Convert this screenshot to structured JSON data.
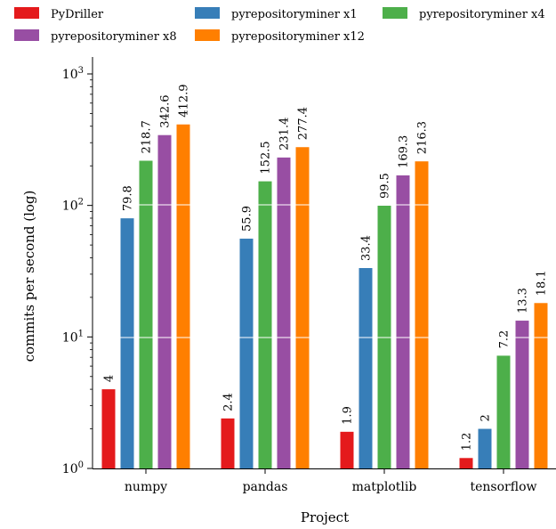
{
  "chart_data": {
    "type": "bar",
    "title": "",
    "xlabel": "Project",
    "ylabel": "commits per second (log)",
    "yscale": "log",
    "ylim": [
      1,
      1000
    ],
    "yticks": [
      {
        "value": 1,
        "base": "10",
        "exp": "0"
      },
      {
        "value": 10,
        "base": "10",
        "exp": "1"
      },
      {
        "value": 100,
        "base": "10",
        "exp": "2"
      },
      {
        "value": 1000,
        "base": "10",
        "exp": "3"
      }
    ],
    "grid": "horizontal, white",
    "legend": "top",
    "categories": [
      "numpy",
      "pandas",
      "matplotlib",
      "tensorflow"
    ],
    "series": [
      {
        "name": "PyDriller",
        "color": "#e41a1c",
        "values": [
          4,
          2.4,
          1.9,
          1.2
        ],
        "labels": [
          "4",
          "2.4",
          "1.9",
          "1.2"
        ]
      },
      {
        "name": "pyrepositoryminer x1",
        "color": "#377eb8",
        "values": [
          79.8,
          55.9,
          33.4,
          2
        ],
        "labels": [
          "79.8",
          "55.9",
          "33.4",
          "2"
        ]
      },
      {
        "name": "pyrepositoryminer x4",
        "color": "#4daf4a",
        "values": [
          218.7,
          152.5,
          99.5,
          7.2
        ],
        "labels": [
          "218.7",
          "152.5",
          "99.5",
          "7.2"
        ]
      },
      {
        "name": "pyrepositoryminer x8",
        "color": "#984ea3",
        "values": [
          342.6,
          231.4,
          169.3,
          13.3
        ],
        "labels": [
          "342.6",
          "231.4",
          "169.3",
          "13.3"
        ]
      },
      {
        "name": "pyrepositoryminer x12",
        "color": "#ff7f00",
        "values": [
          412.9,
          277.4,
          216.3,
          18.1
        ],
        "labels": [
          "412.9",
          "277.4",
          "216.3",
          "18.1"
        ]
      }
    ]
  }
}
